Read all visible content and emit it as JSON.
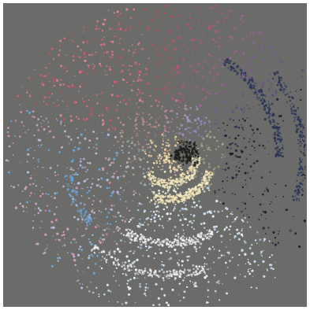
{
  "image": {
    "subject": "color-spiral-particle-visualization",
    "background_color": "#6b6b69",
    "border_color": "#ffffff",
    "palette": {
      "red": "#c84a5e",
      "pink": "#d98ca0",
      "purple": "#8a6fa8",
      "navy": "#2a3358",
      "black": "#1c1c1c",
      "light_blue": "#a8c8e8",
      "sky_blue": "#6aa6d8",
      "white": "#f0f0f0",
      "cream": "#f2e7b8",
      "peach": "#e8b08a",
      "tan": "#c8b48c",
      "green_gray": "#9aa88c"
    },
    "particle_count": 6500
  }
}
